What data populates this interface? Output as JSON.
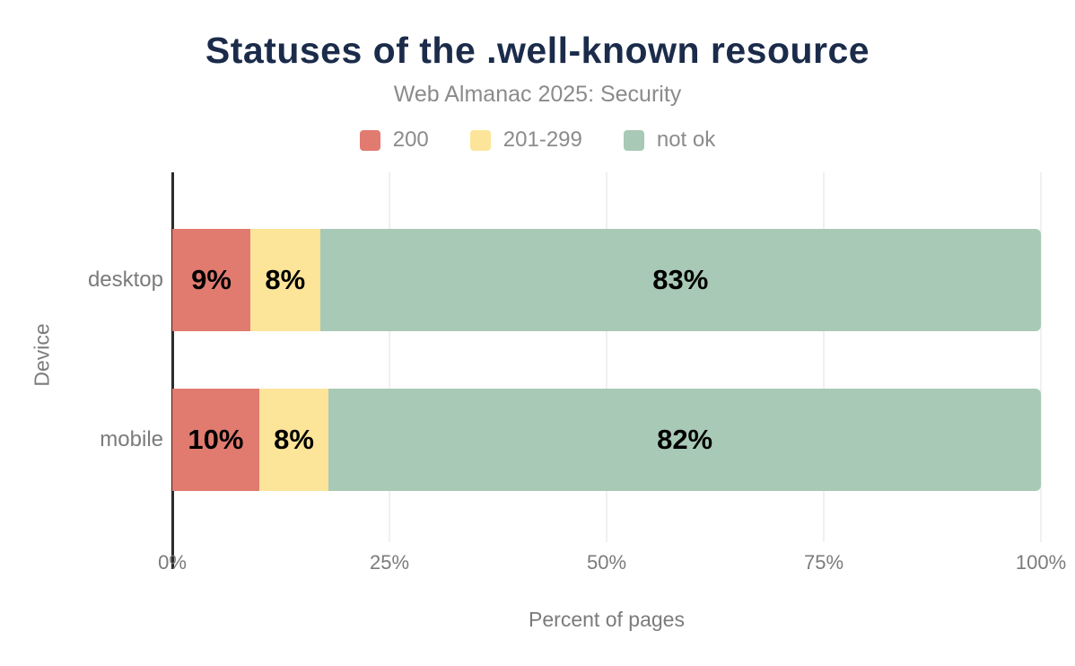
{
  "header": {
    "title": "Statuses of the .well-known resource",
    "subtitle": "Web Almanac 2025: Security"
  },
  "colors": {
    "title_text": "#1b2b4a",
    "muted_text": "#8b8b8b",
    "axis_text": "#7b7b7b",
    "axis_line": "#2b2b2b",
    "gridline": "#f0f0f0",
    "value_label": "#000000"
  },
  "chart_data": {
    "type": "bar",
    "orientation": "horizontal",
    "stacked": true,
    "title": "Statuses of the .well-known resource",
    "subtitle": "Web Almanac 2025: Security",
    "categories": [
      "desktop",
      "mobile"
    ],
    "series": [
      {
        "name": "200",
        "color": "#e17b70",
        "values": [
          9,
          10
        ]
      },
      {
        "name": "201-299",
        "color": "#fce499",
        "values": [
          8,
          8
        ]
      },
      {
        "name": "not ok",
        "color": "#a8c9b6",
        "values": [
          83,
          82
        ]
      }
    ],
    "value_labels": [
      [
        "9%",
        "8%",
        "83%"
      ],
      [
        "10%",
        "8%",
        "82%"
      ]
    ],
    "xlabel": "Percent of pages",
    "ylabel": "Device",
    "xlim": [
      0,
      100
    ],
    "x_ticks": [
      {
        "value": 0,
        "label": "0%"
      },
      {
        "value": 25,
        "label": "25%"
      },
      {
        "value": 50,
        "label": "50%"
      },
      {
        "value": 75,
        "label": "75%"
      },
      {
        "value": 100,
        "label": "100%"
      }
    ],
    "grid": true,
    "legend_position": "top-center"
  }
}
